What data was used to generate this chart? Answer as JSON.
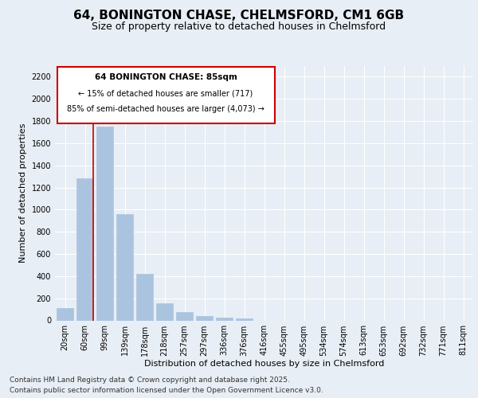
{
  "title_line1": "64, BONINGTON CHASE, CHELMSFORD, CM1 6GB",
  "title_line2": "Size of property relative to detached houses in Chelmsford",
  "xlabel": "Distribution of detached houses by size in Chelmsford",
  "ylabel": "Number of detached properties",
  "categories": [
    "20sqm",
    "60sqm",
    "99sqm",
    "139sqm",
    "178sqm",
    "218sqm",
    "257sqm",
    "297sqm",
    "336sqm",
    "376sqm",
    "416sqm",
    "455sqm",
    "495sqm",
    "534sqm",
    "574sqm",
    "613sqm",
    "653sqm",
    "692sqm",
    "732sqm",
    "771sqm",
    "811sqm"
  ],
  "values": [
    110,
    1280,
    1750,
    960,
    420,
    155,
    75,
    40,
    25,
    15,
    0,
    0,
    0,
    0,
    0,
    0,
    0,
    0,
    0,
    0,
    0
  ],
  "bar_color": "#aac4e0",
  "bar_edgecolor": "#aac4e0",
  "vline_color": "#cc0000",
  "annotation_title": "64 BONINGTON CHASE: 85sqm",
  "annotation_line2": "← 15% of detached houses are smaller (717)",
  "annotation_line3": "85% of semi-detached houses are larger (4,073) →",
  "annotation_box_color": "#cc0000",
  "ylim": [
    0,
    2300
  ],
  "yticks": [
    0,
    200,
    400,
    600,
    800,
    1000,
    1200,
    1400,
    1600,
    1800,
    2000,
    2200
  ],
  "bg_color": "#e8eef5",
  "plot_bg_color": "#e8eef5",
  "grid_color": "#ffffff",
  "footer_line1": "Contains HM Land Registry data © Crown copyright and database right 2025.",
  "footer_line2": "Contains public sector information licensed under the Open Government Licence v3.0.",
  "title_fontsize": 11,
  "subtitle_fontsize": 9,
  "axis_label_fontsize": 8,
  "tick_fontsize": 7,
  "footer_fontsize": 6.5
}
